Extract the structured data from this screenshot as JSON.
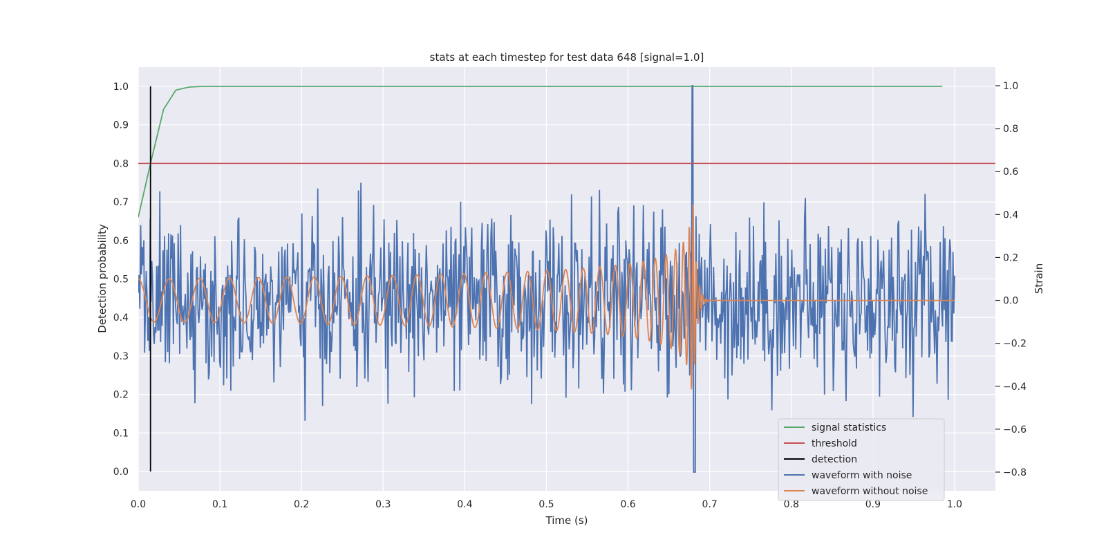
{
  "chart_data": {
    "type": "line",
    "title": "stats at each timestep for test data 648 [signal=1.0]",
    "xlabel": "Time (s)",
    "ylabel": "Detection probability",
    "y2label": "Strain",
    "xlim": [
      0.0,
      1.05
    ],
    "ylim": [
      -0.05,
      1.05
    ],
    "y2lim": [
      -0.887,
      1.087
    ],
    "xticks": [
      "0.0",
      "0.1",
      "0.2",
      "0.3",
      "0.4",
      "0.5",
      "0.6",
      "0.7",
      "0.8",
      "0.9",
      "1.0"
    ],
    "yticks": [
      "0.0",
      "0.1",
      "0.2",
      "0.3",
      "0.4",
      "0.5",
      "0.6",
      "0.7",
      "0.8",
      "0.9",
      "1.0"
    ],
    "y2ticks": [
      "−0.8",
      "−0.6",
      "−0.4",
      "−0.2",
      "0.0",
      "0.2",
      "0.4",
      "0.6",
      "0.8",
      "1.0"
    ],
    "grid": true,
    "legend_position": "lower-right",
    "series": [
      {
        "name": "signal statistics",
        "axis": "left",
        "color": "#55a868",
        "x": [
          0.0,
          0.015,
          0.031,
          0.046,
          0.062,
          0.08,
          0.2,
          0.5,
          0.985
        ],
        "y": [
          0.66,
          0.8,
          0.94,
          0.99,
          0.998,
          1.0,
          1.0,
          1.0,
          1.0
        ]
      },
      {
        "name": "threshold",
        "axis": "left",
        "color": "#c44e52",
        "x": [
          0.0,
          1.05
        ],
        "y": [
          0.8,
          0.8
        ]
      },
      {
        "name": "detection",
        "axis": "left",
        "color": "#000000",
        "x": [
          0.015,
          0.015
        ],
        "y": [
          0.0,
          1.0
        ]
      },
      {
        "name": "waveform with noise",
        "axis": "right",
        "color": "#4c72b0",
        "x_range": [
          0.0,
          1.0
        ],
        "samples": 1024,
        "approx_std": 0.2,
        "min": -0.8,
        "max": 1.0
      },
      {
        "name": "waveform without noise",
        "axis": "right",
        "color": "#dd8452",
        "x_range": [
          0.0,
          1.0
        ],
        "merger_time": 0.68,
        "peak_amplitude": 0.45
      }
    ]
  }
}
